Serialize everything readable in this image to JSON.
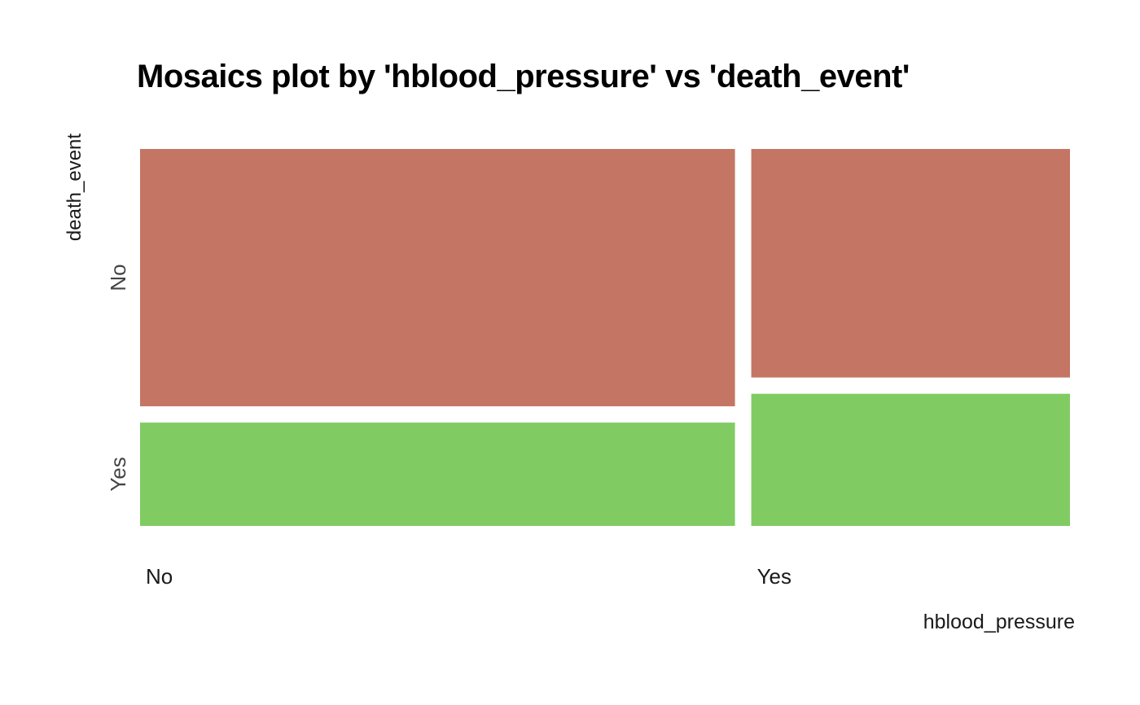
{
  "chart_data": {
    "type": "mosaic",
    "title": "Mosaics plot by 'hblood_pressure' vs 'death_event'",
    "xlabel": "hblood_pressure",
    "ylabel": "death_event",
    "x_categories": [
      "No",
      "Yes"
    ],
    "y_categories": [
      "No",
      "Yes"
    ],
    "x_proportions": [
      0.649,
      0.351
    ],
    "cells": [
      {
        "x": "No",
        "y": "No",
        "proportion_within_x": 0.706
      },
      {
        "x": "No",
        "y": "Yes",
        "proportion_within_x": 0.294
      },
      {
        "x": "Yes",
        "y": "No",
        "proportion_within_x": 0.629
      },
      {
        "x": "Yes",
        "y": "Yes",
        "proportion_within_x": 0.371
      }
    ],
    "colors": {
      "No": "#c57564",
      "Yes": "#81cb63"
    },
    "grid": false,
    "legend": "none"
  }
}
